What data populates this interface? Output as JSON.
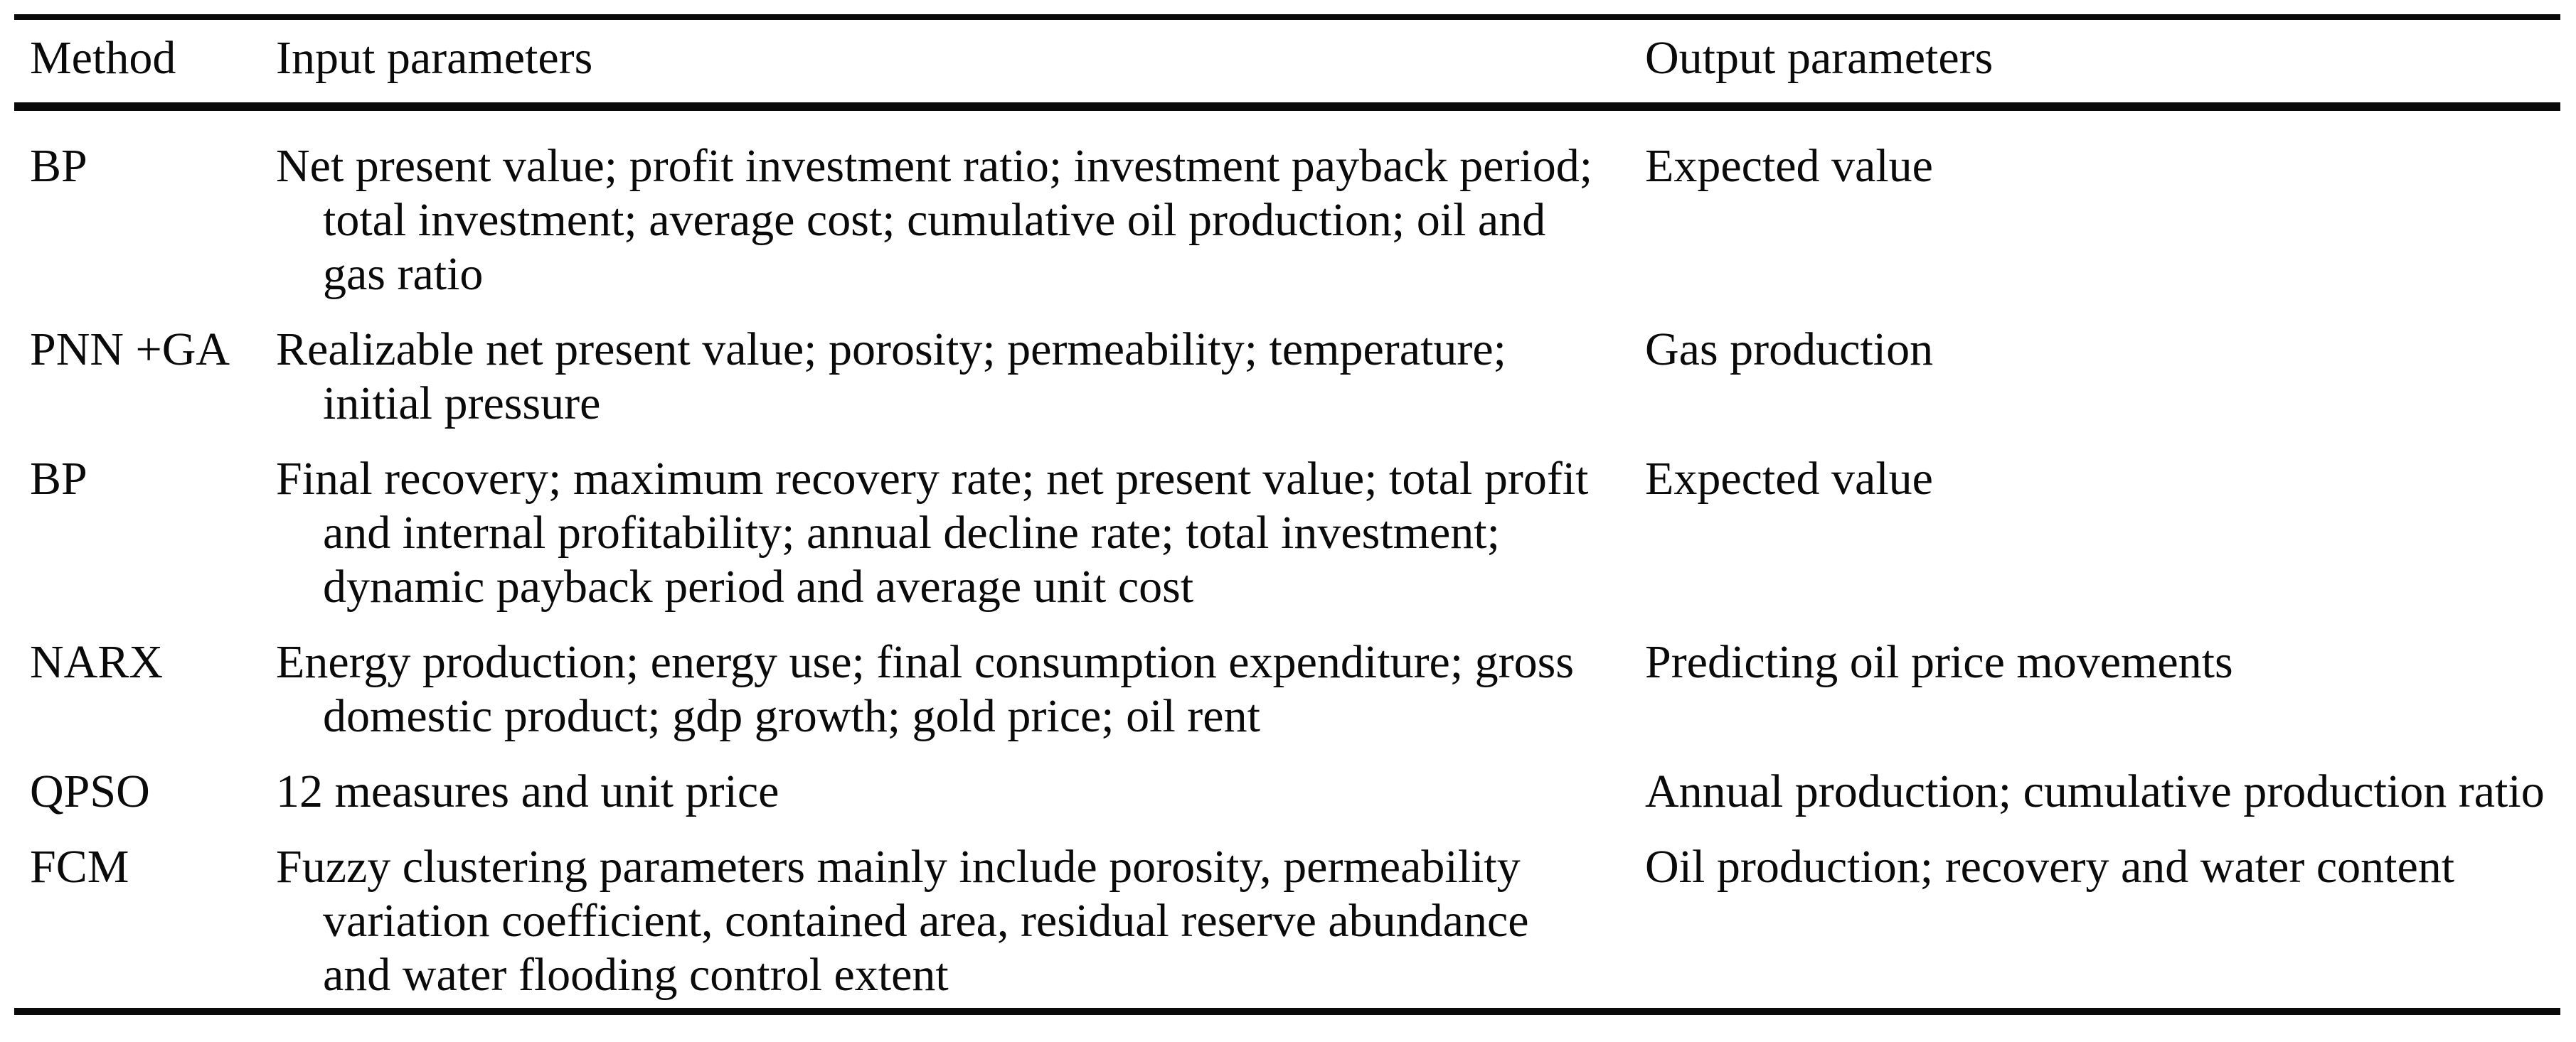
{
  "table": {
    "headers": {
      "method": "Method",
      "input": "Input parameters",
      "output": "Output parameters"
    },
    "rows": [
      {
        "method": "BP",
        "input_lines": [
          "Net present value; profit investment ratio; investment payback period;",
          "total investment; average cost; cumulative oil production; oil and",
          "gas ratio"
        ],
        "output": "Expected value"
      },
      {
        "method": "PNN +GA",
        "input_lines": [
          "Realizable net present value; porosity; permeability; temperature;",
          "initial pressure"
        ],
        "output": "Gas production"
      },
      {
        "method": "BP",
        "input_lines": [
          "Final recovery; maximum recovery rate; net present value; total profit",
          "and internal profitability; annual decline rate; total investment;",
          "dynamic payback period and average unit cost"
        ],
        "output": "Expected value"
      },
      {
        "method": "NARX",
        "input_lines": [
          "Energy production; energy use; final consumption expenditure; gross",
          "domestic product; gdp growth; gold price; oil rent"
        ],
        "output": "Predicting oil price movements"
      },
      {
        "method": "QPSO",
        "input_lines": [
          "12 measures and unit price"
        ],
        "output": "Annual production; cumulative production ratio"
      },
      {
        "method": "FCM",
        "input_lines": [
          "Fuzzy clustering parameters mainly include porosity, permeability",
          "variation coefficient, contained area, residual reserve abundance",
          "and water flooding control extent"
        ],
        "output": "Oil production; recovery and water content"
      }
    ],
    "text_color": "#0a0a0a"
  }
}
